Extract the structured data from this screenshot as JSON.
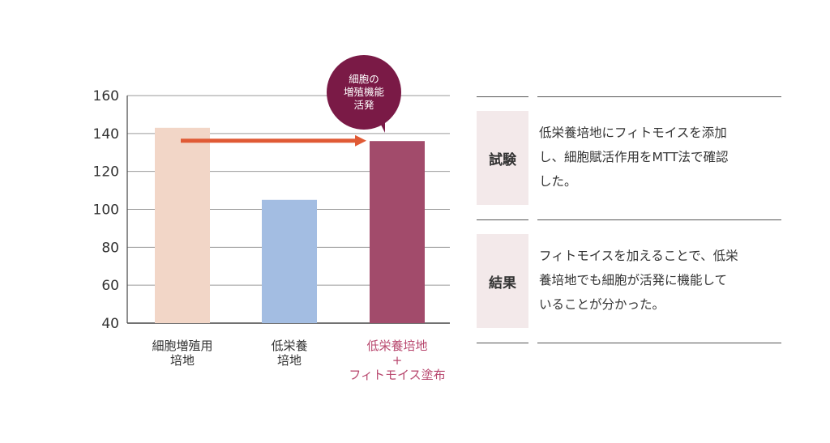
{
  "chart_data": {
    "type": "bar",
    "categories": [
      [
        "細胞増殖用",
        "培地"
      ],
      [
        "低栄養",
        "培地"
      ],
      [
        "低栄養培地",
        "+",
        "フィトモイス塗布"
      ]
    ],
    "values": [
      143,
      105,
      136
    ],
    "bar_colors": [
      "#f2d6c7",
      "#a3bde2",
      "#a24b6b"
    ],
    "category_label_colors": [
      "#333333",
      "#333333",
      "#b8476e"
    ],
    "ylim": [
      40,
      160
    ],
    "yticks": [
      40,
      60,
      80,
      100,
      120,
      140,
      160
    ],
    "grid": true,
    "arrow": {
      "from": 0,
      "to": 2,
      "color": "#e05a35"
    },
    "callout": {
      "lines": [
        "細胞の",
        "増殖機能",
        "活発"
      ],
      "color": "#7a1a46"
    }
  },
  "info_table": {
    "rows": [
      {
        "header": "試験",
        "lines": [
          "低栄養培地にフィトモイスを添加",
          "し、細胞賦活作用をMTT法で確認",
          "した。"
        ]
      },
      {
        "header": "結果",
        "lines": [
          "フィトモイスを加えることで、低栄",
          "養培地でも細胞が活発に機能して",
          "いることが分かった。"
        ]
      }
    ]
  }
}
